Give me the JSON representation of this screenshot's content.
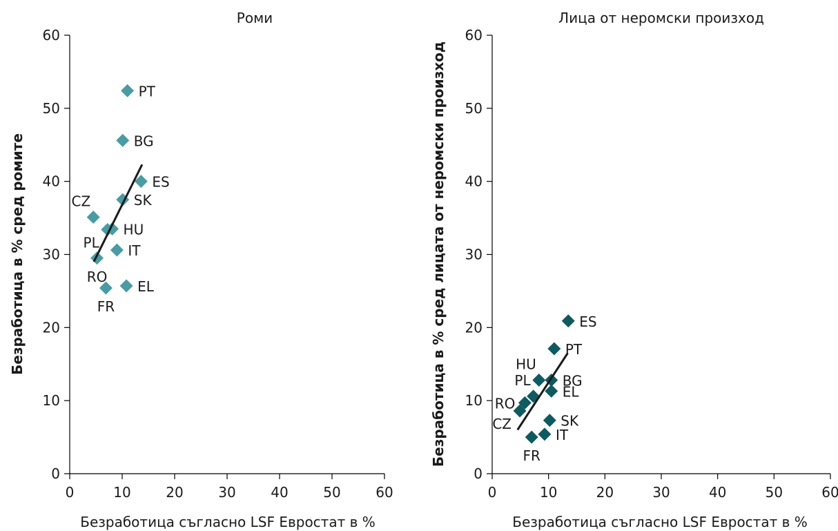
{
  "chart_data": [
    {
      "type": "scatter",
      "title": "Роми",
      "xlabel": "Безработица съгласно LSF Евростат в %",
      "ylabel": "Безработица в % сред ромите",
      "xlim": [
        0,
        60
      ],
      "ylim": [
        0,
        60
      ],
      "xticks": [
        0,
        10,
        20,
        30,
        40,
        50,
        60
      ],
      "yticks": [
        0,
        10,
        20,
        30,
        40,
        50,
        60
      ],
      "marker_color": "#4a9ba3",
      "points": [
        {
          "label": "PT",
          "x": 11.0,
          "y": 52.4,
          "label_pos": "right"
        },
        {
          "label": "BG",
          "x": 10.1,
          "y": 45.6,
          "label_pos": "right"
        },
        {
          "label": "ES",
          "x": 13.6,
          "y": 40.0,
          "label_pos": "right"
        },
        {
          "label": "SK",
          "x": 10.1,
          "y": 37.5,
          "label_pos": "right"
        },
        {
          "label": "CZ",
          "x": 4.5,
          "y": 35.1,
          "label_pos": "above-left"
        },
        {
          "label": "HU",
          "x": 8.1,
          "y": 33.5,
          "label_pos": "right"
        },
        {
          "label": "PL",
          "x": 7.2,
          "y": 33.4,
          "label_pos": "below-left"
        },
        {
          "label": "IT",
          "x": 9.0,
          "y": 30.6,
          "label_pos": "right"
        },
        {
          "label": "RO",
          "x": 5.2,
          "y": 29.5,
          "label_pos": "below"
        },
        {
          "label": "EL",
          "x": 10.8,
          "y": 25.7,
          "label_pos": "right"
        },
        {
          "label": "FR",
          "x": 6.9,
          "y": 25.4,
          "label_pos": "below"
        }
      ],
      "trendline": [
        [
          4.6,
          29.0
        ],
        [
          13.8,
          42.3
        ]
      ]
    },
    {
      "type": "scatter",
      "title": "Лица от неромски произход",
      "xlabel": "Безработица съгласно LSF Евростат в %",
      "ylabel": "Безработица в % сред лицата от неромски произход",
      "xlim": [
        0,
        60
      ],
      "ylim": [
        0,
        60
      ],
      "xticks": [
        0,
        10,
        20,
        30,
        40,
        50,
        60
      ],
      "yticks": [
        0,
        10,
        20,
        30,
        40,
        50,
        60
      ],
      "marker_color": "#0f5a60",
      "points": [
        {
          "label": "ES",
          "x": 13.5,
          "y": 20.9,
          "label_pos": "right"
        },
        {
          "label": "PT",
          "x": 11.0,
          "y": 17.1,
          "label_pos": "right"
        },
        {
          "label": "HU",
          "x": 8.3,
          "y": 12.8,
          "label_pos": "above-left"
        },
        {
          "label": "BG",
          "x": 10.5,
          "y": 12.8,
          "label_pos": "right"
        },
        {
          "label": "PL",
          "x": 7.3,
          "y": 10.6,
          "label_pos": "above-left"
        },
        {
          "label": "EL",
          "x": 10.5,
          "y": 11.3,
          "label_pos": "right"
        },
        {
          "label": "RO",
          "x": 5.8,
          "y": 9.7,
          "label_pos": "left"
        },
        {
          "label": "CZ",
          "x": 4.9,
          "y": 8.6,
          "label_pos": "below-left"
        },
        {
          "label": "SK",
          "x": 10.2,
          "y": 7.3,
          "label_pos": "right"
        },
        {
          "label": "IT",
          "x": 9.3,
          "y": 5.4,
          "label_pos": "right"
        },
        {
          "label": "FR",
          "x": 7.0,
          "y": 5.0,
          "label_pos": "below"
        }
      ],
      "trendline": [
        [
          4.5,
          6.0
        ],
        [
          13.4,
          16.5
        ]
      ]
    }
  ]
}
